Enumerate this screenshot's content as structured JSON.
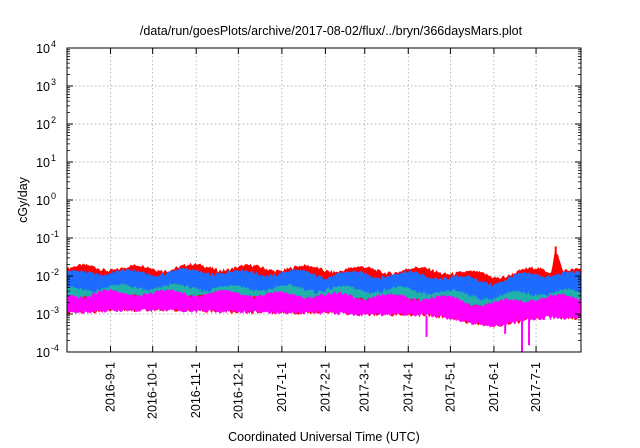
{
  "chart_data": {
    "type": "area",
    "title": "/data/run/goesPlots/archive/2017-08-02/flux/../bryn/366daysMars.plot",
    "xlabel": "Coordinated Universal Time (UTC)",
    "ylabel": "cGy/day",
    "x_scale": "time",
    "y_scale": "log",
    "xlim": [
      "2016-08-01",
      "2017-08-02"
    ],
    "ylim": [
      0.0001,
      10000
    ],
    "y_ticks": [
      {
        "base": "10",
        "exp": "-4",
        "value": 0.0001
      },
      {
        "base": "10",
        "exp": "-3",
        "value": 0.001
      },
      {
        "base": "10",
        "exp": "-2",
        "value": 0.01
      },
      {
        "base": "10",
        "exp": "-1",
        "value": 0.1
      },
      {
        "base": "10",
        "exp": "0",
        "value": 1
      },
      {
        "base": "10",
        "exp": "1",
        "value": 10
      },
      {
        "base": "10",
        "exp": "2",
        "value": 100
      },
      {
        "base": "10",
        "exp": "3",
        "value": 1000
      },
      {
        "base": "10",
        "exp": "4",
        "value": 10000
      }
    ],
    "x_ticks": [
      {
        "label": "2016-9-1",
        "date": "2016-09-01"
      },
      {
        "label": "2016-10-1",
        "date": "2016-10-01"
      },
      {
        "label": "2016-11-1",
        "date": "2016-11-01"
      },
      {
        "label": "2016-12-1",
        "date": "2016-12-01"
      },
      {
        "label": "2017-1-1",
        "date": "2017-01-01"
      },
      {
        "label": "2017-2-1",
        "date": "2017-02-01"
      },
      {
        "label": "2017-3-1",
        "date": "2017-03-01"
      },
      {
        "label": "2017-4-1",
        "date": "2017-04-01"
      },
      {
        "label": "2017-5-1",
        "date": "2017-05-01"
      },
      {
        "label": "2017-6-1",
        "date": "2017-06-01"
      },
      {
        "label": "2017-7-1",
        "date": "2017-07-01"
      }
    ],
    "grid": true,
    "legend": "none",
    "series": [
      {
        "color": "#ff0000",
        "x": [
          "2016-08-01",
          "2016-08-20",
          "2016-09-10",
          "2016-10-01",
          "2016-10-20",
          "2016-11-10",
          "2016-12-01",
          "2016-12-20",
          "2017-01-10",
          "2017-02-01",
          "2017-02-20",
          "2017-03-10",
          "2017-04-01",
          "2017-04-20",
          "2017-05-01",
          "2017-05-15",
          "2017-06-01",
          "2017-06-15",
          "2017-07-01",
          "2017-07-12",
          "2017-07-15",
          "2017-07-20",
          "2017-08-02"
        ],
        "upper": [
          0.015,
          0.017,
          0.016,
          0.016,
          0.017,
          0.017,
          0.016,
          0.016,
          0.016,
          0.015,
          0.015,
          0.014,
          0.014,
          0.014,
          0.013,
          0.011,
          0.01,
          0.012,
          0.014,
          0.014,
          0.06,
          0.016,
          0.013
        ],
        "lower": [
          0.0011,
          0.0012,
          0.0013,
          0.0013,
          0.0013,
          0.0012,
          0.0012,
          0.0011,
          0.0011,
          0.0011,
          0.001,
          0.001,
          0.001,
          0.0009,
          0.0008,
          0.0006,
          0.0005,
          0.0006,
          0.0008,
          0.0009,
          0.0009,
          0.0008,
          0.0008
        ]
      },
      {
        "color": "#1e6bff",
        "x": [
          "2016-08-01",
          "2016-08-20",
          "2016-09-10",
          "2016-10-01",
          "2016-10-20",
          "2016-11-10",
          "2016-12-01",
          "2016-12-20",
          "2017-01-10",
          "2017-02-01",
          "2017-02-20",
          "2017-03-10",
          "2017-04-01",
          "2017-04-20",
          "2017-05-01",
          "2017-05-15",
          "2017-06-01",
          "2017-06-15",
          "2017-07-01",
          "2017-07-20",
          "2017-08-02"
        ],
        "upper": [
          0.011,
          0.013,
          0.012,
          0.012,
          0.013,
          0.013,
          0.012,
          0.012,
          0.012,
          0.011,
          0.011,
          0.011,
          0.011,
          0.01,
          0.009,
          0.008,
          0.007,
          0.009,
          0.011,
          0.012,
          0.01
        ],
        "lower": [
          0.003,
          0.0035,
          0.0035,
          0.0035,
          0.0035,
          0.0033,
          0.0033,
          0.003,
          0.003,
          0.003,
          0.0028,
          0.0028,
          0.0027,
          0.0025,
          0.0022,
          0.0018,
          0.0016,
          0.002,
          0.0024,
          0.0025,
          0.0024
        ]
      },
      {
        "color": "#20b2aa",
        "x": [
          "2016-08-01",
          "2016-09-10",
          "2016-10-20",
          "2016-12-01",
          "2017-01-10",
          "2017-02-20",
          "2017-04-01",
          "2017-05-01",
          "2017-06-01",
          "2017-07-01",
          "2017-08-02"
        ],
        "upper": [
          0.0045,
          0.005,
          0.005,
          0.0048,
          0.0047,
          0.0044,
          0.0042,
          0.0035,
          0.0027,
          0.0038,
          0.0036
        ],
        "lower": [
          0.0028,
          0.003,
          0.003,
          0.0029,
          0.0028,
          0.0026,
          0.0025,
          0.002,
          0.0015,
          0.0022,
          0.0021
        ]
      },
      {
        "color": "#ff00ff",
        "x": [
          "2016-08-01",
          "2016-08-20",
          "2016-09-10",
          "2016-10-01",
          "2016-10-20",
          "2016-11-10",
          "2016-12-01",
          "2016-12-20",
          "2017-01-10",
          "2017-02-01",
          "2017-02-20",
          "2017-03-10",
          "2017-04-01",
          "2017-04-20",
          "2017-05-01",
          "2017-05-15",
          "2017-06-01",
          "2017-06-15",
          "2017-07-01",
          "2017-07-20",
          "2017-08-02"
        ],
        "upper": [
          0.003,
          0.0036,
          0.0035,
          0.0035,
          0.0036,
          0.0034,
          0.0034,
          0.0032,
          0.0032,
          0.003,
          0.003,
          0.0029,
          0.0028,
          0.0027,
          0.0024,
          0.002,
          0.0018,
          0.0022,
          0.0026,
          0.0027,
          0.0026
        ],
        "lower": [
          0.0011,
          0.0012,
          0.0013,
          0.0013,
          0.0013,
          0.0012,
          0.0012,
          0.0011,
          0.0011,
          0.0011,
          0.001,
          0.001,
          0.001,
          0.0009,
          0.0008,
          0.0006,
          0.0005,
          0.0006,
          0.0008,
          0.0008,
          0.0008
        ]
      }
    ],
    "annotations": [
      {
        "type": "spike",
        "color": "#ff0000",
        "x": "2017-07-15",
        "y": 0.06
      },
      {
        "type": "dip",
        "color": "#ff00ff",
        "x": "2017-04-14",
        "y": 0.00025
      },
      {
        "type": "dip",
        "color": "#ff00ff",
        "x": "2017-06-21",
        "y": 0.0001
      },
      {
        "type": "dip",
        "color": "#ff00ff",
        "x": "2017-06-26",
        "y": 0.00015
      },
      {
        "type": "dip",
        "color": "#ff00ff",
        "x": "2017-06-09",
        "y": 0.0003
      }
    ]
  }
}
